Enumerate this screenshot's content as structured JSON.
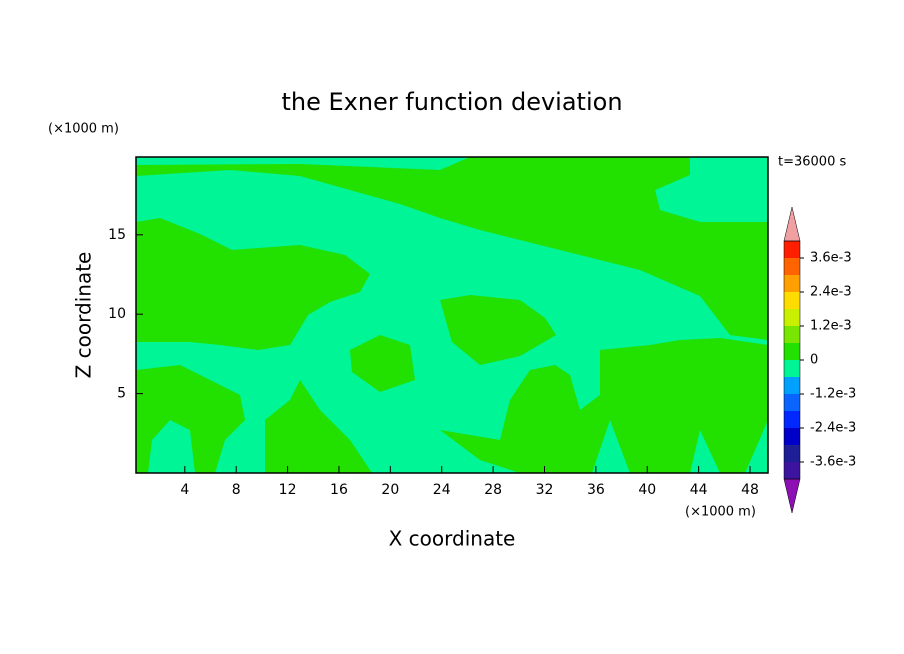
{
  "chart_data": {
    "type": "contour",
    "title": "the Exner function deviation",
    "x_label": "X coordinate",
    "y_label": "Z coordinate",
    "x_unit": "(×1000 m)",
    "y_unit": "(×1000 m)",
    "time_label": "t=36000 s",
    "xlim": [
      0.2,
      49.4
    ],
    "ylim": [
      0,
      19.9
    ],
    "xticks": [
      4,
      8,
      12,
      16,
      20,
      24,
      28,
      32,
      36,
      40,
      44,
      48
    ],
    "yticks": [
      5,
      10,
      15
    ],
    "colorbar": {
      "levels": [
        -0.0036,
        -0.003,
        -0.0024,
        -0.0018,
        -0.0012,
        -0.0006,
        0,
        0.0006,
        0.0012,
        0.0018,
        0.0024,
        0.003,
        0.0036
      ],
      "ticks": [
        {
          "value": 0.0036,
          "label": "3.6e-3"
        },
        {
          "value": 0.0024,
          "label": "2.4e-3"
        },
        {
          "value": 0.0012,
          "label": "1.2e-3"
        },
        0,
        {
          "value": -0.0012,
          "label": "-1.2e-3"
        },
        {
          "value": -0.0024,
          "label": "-2.4e-3"
        },
        {
          "value": -0.0036,
          "label": "-3.6e-3"
        }
      ],
      "colors": [
        "#3c14a0",
        "#1e1e96",
        "#0000c8",
        "#0028ff",
        "#0a64ff",
        "#00a0ff",
        "#00f596",
        "#22e000",
        "#78e600",
        "#c8f000",
        "#ffdc00",
        "#ffa000",
        "#ff6400",
        "#ff1e00"
      ],
      "extend_colors": [
        "#8c10b4",
        "#f0a0a0"
      ]
    }
  }
}
